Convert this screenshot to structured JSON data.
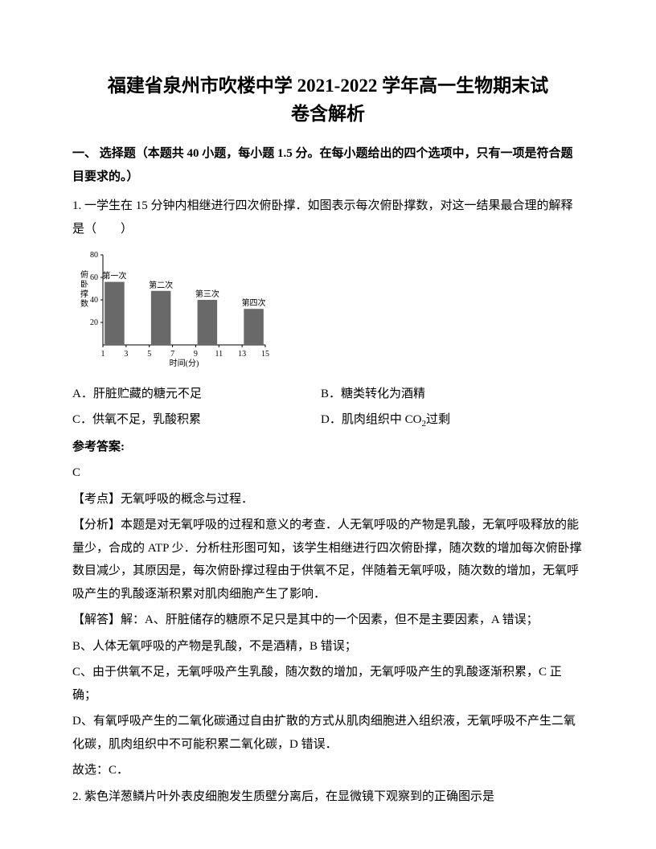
{
  "title_line1": "福建省泉州市吹楼中学 2021-2022 学年高一生物期末试",
  "title_line2": "卷含解析",
  "section1_header": "一、 选择题（本题共 40 小题，每小题 1.5 分。在每小题给出的四个选项中，只有一项是符合题目要求的。）",
  "q1_stem": "1. 一学生在 15 分钟内相继进行四次俯卧撑．如图表示每次俯卧撑数，对这一结果最合理的解释是（　　）",
  "chart": {
    "type": "bar",
    "y_label": "俯卧撑数",
    "x_label": "时间(分)",
    "y_ticks": [
      20,
      40,
      60,
      80
    ],
    "x_ticks": [
      1,
      3,
      5,
      7,
      9,
      11,
      13,
      15
    ],
    "bars": [
      {
        "label": "第一次",
        "value": 56,
        "x_start": 1,
        "x_end": 3
      },
      {
        "label": "第二次",
        "value": 48,
        "x_start": 5,
        "x_end": 7
      },
      {
        "label": "第三次",
        "value": 40,
        "x_start": 9,
        "x_end": 11
      },
      {
        "label": "第四次",
        "value": 32,
        "x_start": 13,
        "x_end": 15
      }
    ],
    "bar_color": "#696969",
    "axis_color": "#000000",
    "text_color": "#000000",
    "background": "#ffffff",
    "y_max": 80,
    "y_min": 0,
    "font_size": 10,
    "bar_width_ratio": 0.85
  },
  "q1_optA": "A．肝脏贮藏的糖元不足",
  "q1_optB": "B．糖类转化为酒精",
  "q1_optC": "C．供氧不足，乳酸积累",
  "q1_optD_prefix": "D．肌肉组织中 CO",
  "q1_optD_sub": "2",
  "q1_optD_suffix": "过剩",
  "ans_label": "参考答案:",
  "ans_value": "C",
  "exam_point": "【考点】无氧呼吸的概念与过程．",
  "analysis": "【分析】本题是对无氧呼吸的过程和意义的考查．人无氧呼吸的产物是乳酸，无氧呼吸释放的能量少，合成的 ATP 少．分析柱形图可知，该学生相继进行四次俯卧撑，随次数的增加每次俯卧撑数目减少，其原因是，每次俯卧撑过程由于供氧不足，伴随着无氧呼吸，随次数的增加，无氧呼吸产生的乳酸逐渐积累对肌肉细胞产生了影响．",
  "solution_intro": "【解答】解：A、肝脏储存的糖原不足只是其中的一个因素，但不是主要因素，A 错误；",
  "solution_B": "B、人体无氧呼吸的产物是乳酸，不是酒精，B 错误；",
  "solution_C": "C、由于供氧不足，无氧呼吸产生乳酸，随次数的增加，无氧呼吸产生的乳酸逐渐积累，C 正确；",
  "solution_D": "D、有氧呼吸产生的二氧化碳通过自由扩散的方式从肌肉细胞进入组织液，无氧呼吸不产生二氧化碳，肌肉组织中不可能积累二氧化碳，D 错误．",
  "conclusion": "故选：C．",
  "q2_stem": "2. 紫色洋葱鳞片叶外表皮细胞发生质壁分离后，在显微镜下观察到的正确图示是"
}
